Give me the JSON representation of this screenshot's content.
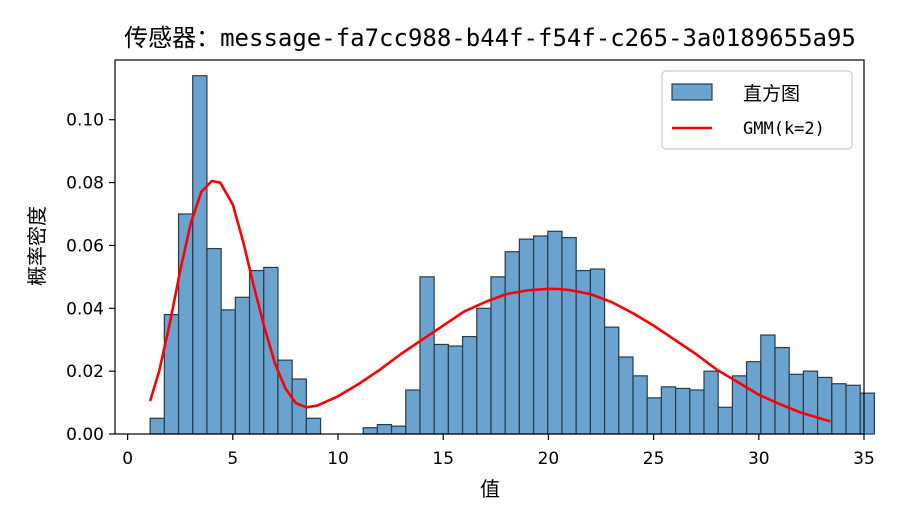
{
  "chart_data": {
    "type": "bar",
    "title": "传感器：message-fa7cc988-b44f-f54f-c265-3a0189655a95",
    "xlabel": "值",
    "ylabel": "概率密度",
    "xlim": [
      -0.6,
      35
    ],
    "ylim": [
      0,
      0.119
    ],
    "xticks": [
      0,
      5,
      10,
      15,
      20,
      25,
      30,
      35
    ],
    "yticks": [
      0.0,
      0.02,
      0.04,
      0.06,
      0.08,
      0.1
    ],
    "ytick_labels": [
      "0.00",
      "0.02",
      "0.04",
      "0.06",
      "0.08",
      "0.10"
    ],
    "legend_position": "top-right",
    "bin_start": 1.07,
    "bin_width": 0.675,
    "histogram": {
      "name": "直方图",
      "color": "#6aa3cf",
      "edge_color": "#2b3a47",
      "values": [
        0.005,
        0.038,
        0.07,
        0.114,
        0.059,
        0.0395,
        0.0435,
        0.052,
        0.053,
        0.0235,
        0.0175,
        0.005,
        0.0,
        0.0,
        0.0,
        0.002,
        0.003,
        0.0025,
        0.014,
        0.05,
        0.0285,
        0.028,
        0.031,
        0.04,
        0.05,
        0.058,
        0.062,
        0.063,
        0.0645,
        0.0625,
        0.052,
        0.0525,
        0.034,
        0.0245,
        0.0185,
        0.0115,
        0.015,
        0.0145,
        0.014,
        0.02,
        0.0085,
        0.0185,
        0.023,
        0.0315,
        0.0275,
        0.019,
        0.02,
        0.018,
        0.016,
        0.0155,
        0.013
      ]
    },
    "gmm": {
      "name": "GMM(k=2)",
      "color": "#ff0000",
      "x": [
        1.07,
        1.5,
        2.0,
        2.5,
        3.0,
        3.5,
        4.0,
        4.4,
        5.0,
        5.5,
        6.0,
        6.5,
        7.0,
        7.5,
        8.0,
        8.5,
        9.0,
        10.0,
        11.0,
        12.0,
        13.0,
        14.0,
        15.0,
        16.0,
        17.0,
        18.0,
        19.0,
        20.0,
        20.5,
        21.0,
        22.0,
        23.0,
        24.0,
        25.0,
        26.0,
        27.0,
        28.0,
        29.0,
        30.0,
        31.0,
        32.0,
        33.0,
        33.4
      ],
      "y": [
        0.0105,
        0.02,
        0.035,
        0.052,
        0.067,
        0.077,
        0.0805,
        0.08,
        0.073,
        0.061,
        0.047,
        0.034,
        0.0225,
        0.0145,
        0.0098,
        0.0085,
        0.009,
        0.012,
        0.016,
        0.0205,
        0.0255,
        0.03,
        0.0345,
        0.039,
        0.042,
        0.0445,
        0.0457,
        0.0462,
        0.0461,
        0.0458,
        0.0445,
        0.042,
        0.0385,
        0.0345,
        0.03,
        0.0255,
        0.0205,
        0.0165,
        0.0125,
        0.0095,
        0.0068,
        0.0048,
        0.004
      ]
    }
  }
}
